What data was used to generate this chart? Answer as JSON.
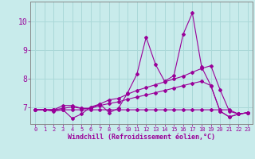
{
  "xlabel": "Windchill (Refroidissement éolien,°C)",
  "bg_color": "#c8ebeb",
  "grid_color": "#aad8d8",
  "line_color": "#990099",
  "spine_color": "#888888",
  "x_ticks": [
    0,
    1,
    2,
    3,
    4,
    5,
    6,
    7,
    8,
    9,
    10,
    11,
    12,
    13,
    14,
    15,
    16,
    17,
    18,
    19,
    20,
    21,
    22,
    23
  ],
  "y_ticks": [
    7,
    8,
    9,
    10
  ],
  "ylim": [
    6.4,
    10.7
  ],
  "xlim": [
    -0.5,
    23.5
  ],
  "series": {
    "line1": [
      6.9,
      6.9,
      6.85,
      6.9,
      6.6,
      6.75,
      7.0,
      7.1,
      6.8,
      6.95,
      7.5,
      8.15,
      9.45,
      8.5,
      7.9,
      8.1,
      9.55,
      10.3,
      8.4,
      7.75,
      6.85,
      6.65,
      6.75,
      6.8
    ],
    "line2": [
      6.9,
      6.9,
      6.9,
      7.05,
      7.05,
      6.95,
      6.95,
      7.1,
      7.25,
      7.3,
      7.45,
      7.58,
      7.68,
      7.78,
      7.88,
      7.98,
      8.08,
      8.22,
      8.35,
      8.45,
      7.6,
      6.85,
      6.75,
      6.8
    ],
    "line3": [
      6.9,
      6.9,
      6.9,
      6.95,
      7.0,
      6.95,
      6.95,
      7.05,
      7.12,
      7.18,
      7.27,
      7.35,
      7.42,
      7.5,
      7.58,
      7.66,
      7.75,
      7.83,
      7.9,
      7.75,
      6.85,
      6.65,
      6.75,
      6.8
    ],
    "line4": [
      6.9,
      6.9,
      6.9,
      6.9,
      6.9,
      6.9,
      6.9,
      6.9,
      6.9,
      6.9,
      6.9,
      6.9,
      6.9,
      6.9,
      6.9,
      6.9,
      6.9,
      6.9,
      6.9,
      6.9,
      6.9,
      6.9,
      6.75,
      6.8
    ]
  }
}
